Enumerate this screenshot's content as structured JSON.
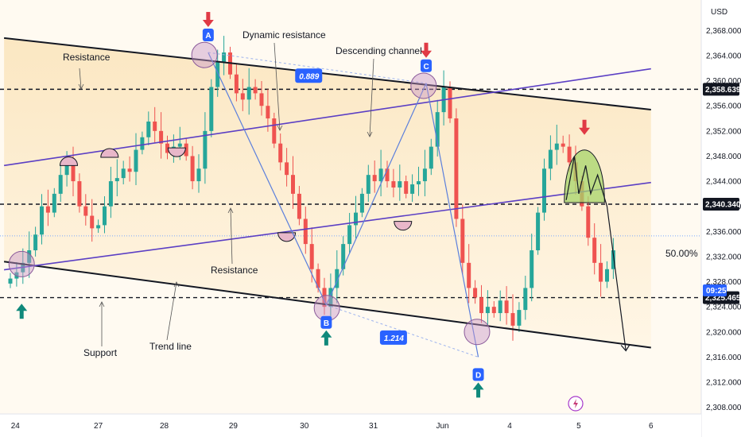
{
  "chart_data": {
    "type": "candlestick",
    "currency": "USD",
    "price_scale": {
      "ylim": [
        2306,
        2371
      ],
      "ticks": [
        "2,368.000",
        "2,364.000",
        "2,360.000",
        "2,356.000",
        "2,352.000",
        "2,348.000",
        "2,344.000",
        "2,340.000",
        "2,336.000",
        "2,332.000",
        "2,328.000",
        "2,324.000",
        "2,320.000",
        "2,316.000",
        "2,312.000",
        "2,308.000"
      ],
      "tick_values": [
        2368,
        2364,
        2360,
        2356,
        2352,
        2348,
        2344,
        2340,
        2336,
        2332,
        2328,
        2324,
        2320,
        2316,
        2312,
        2308
      ]
    },
    "x_axis": {
      "labels": [
        "24",
        "27",
        "28",
        "29",
        "30",
        "31",
        "Jun",
        "4",
        "5",
        "6"
      ],
      "label_index": [
        0.8,
        14,
        24.5,
        35.5,
        46.8,
        57.8,
        68.8,
        79.5,
        90.5,
        102
      ]
    },
    "closes": [
      2328.5,
      2329.5,
      2331,
      2333,
      2335.5,
      2340,
      2339,
      2342,
      2345,
      2346.5,
      2344,
      2340,
      2338.5,
      2336.5,
      2337,
      2340,
      2344,
      2344.5,
      2346,
      2345.5,
      2349,
      2351,
      2353.5,
      2352,
      2350,
      2348.5,
      2349.5,
      2350,
      2348,
      2344,
      2346,
      2352,
      2359,
      2363,
      2364.5,
      2361,
      2358,
      2357,
      2359,
      2358,
      2356,
      2354,
      2350,
      2347,
      2345,
      2342,
      2338,
      2334,
      2330,
      2327,
      2324,
      2327,
      2330,
      2334,
      2337,
      2339,
      2342,
      2345,
      2344,
      2346,
      2344,
      2343,
      2344,
      2342,
      2343.5,
      2344,
      2346,
      2349.5,
      2355,
      2359,
      2354,
      2338,
      2331,
      2327,
      2325.5,
      2323,
      2324,
      2323,
      2325,
      2323,
      2321,
      2323.5,
      2327,
      2333,
      2339,
      2346,
      2349,
      2350,
      2349.5,
      2347,
      2344,
      2340,
      2335,
      2331,
      2328,
      2330,
      2333
    ],
    "levels": [
      {
        "price": 2358.639,
        "label": "2,358.639"
      },
      {
        "price": 2340.34,
        "label": "2,340.340"
      },
      {
        "price": 2325.465,
        "label": "2,325.465"
      }
    ],
    "current_price_tag": "09:25",
    "fib_level": {
      "price": 2335.3,
      "label": "50.00%"
    },
    "channel": {
      "upper": [
        [
          -1,
          2366.8
        ],
        [
          102,
          2355.4
        ]
      ],
      "lower": [
        [
          -1,
          2331.2
        ],
        [
          102,
          2317.5
        ]
      ]
    },
    "trend_lines": [
      [
        [
          -1,
          2346.5
        ],
        [
          102,
          2361.9
        ]
      ],
      [
        [
          -1,
          2329.9
        ],
        [
          102,
          2343.8
        ]
      ]
    ],
    "pattern": {
      "points": [
        {
          "name": "A",
          "i": 31.5,
          "price": 2364.5,
          "marker": "down"
        },
        {
          "name": "B",
          "i": 50.3,
          "price": 2324.3,
          "marker": "up"
        },
        {
          "name": "C",
          "i": 66.2,
          "price": 2359.6,
          "marker": "down"
        },
        {
          "name": "D",
          "i": 74.5,
          "price": 2316.0,
          "marker": "up"
        }
      ],
      "ratios": [
        "0.889",
        "1.214"
      ]
    },
    "annotations": [
      "Resistance",
      "Dynamic resistance",
      "Descending channel",
      "Resistance",
      "Support",
      "Trend line"
    ],
    "forecast": {
      "points": [
        [
          88.5,
          2341
        ],
        [
          89.8,
          2348
        ],
        [
          90.5,
          2342
        ],
        [
          91.6,
          2346.5
        ],
        [
          92.4,
          2342
        ],
        [
          93.5,
          2345
        ],
        [
          95,
          2340
        ],
        [
          98,
          2317
        ]
      ]
    },
    "colors": {
      "bull": "#26a69a",
      "bear": "#ef5350",
      "channel": "#131722",
      "trend": "#5b3fc4",
      "marker_up": "#10897b",
      "marker_down": "#e03a45",
      "label_blue": "#2962ff",
      "zone_green": "#a5d46a"
    }
  }
}
